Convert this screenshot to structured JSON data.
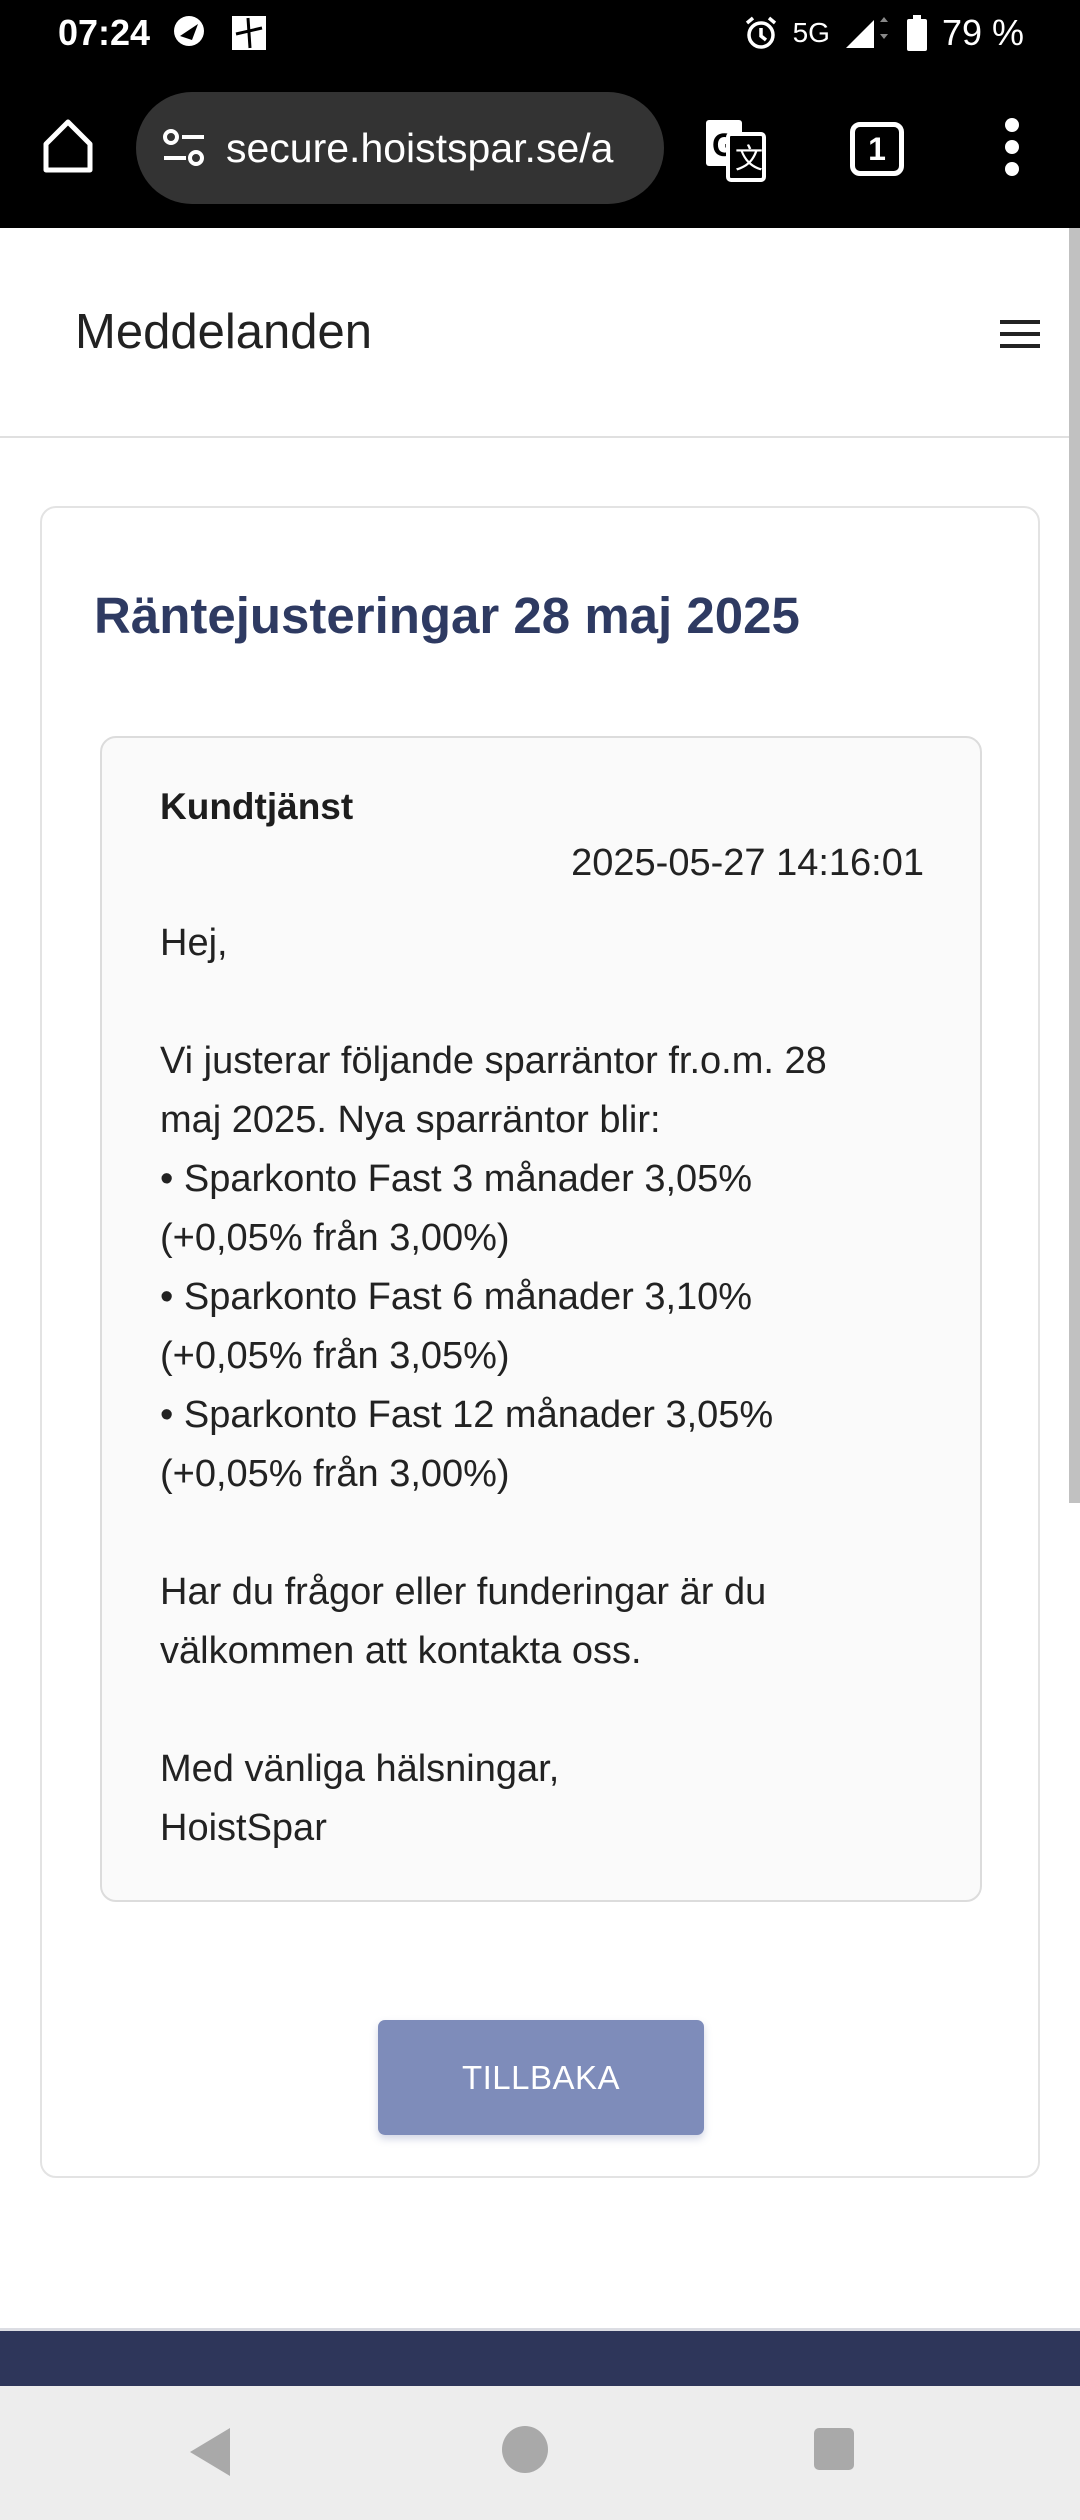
{
  "status_bar": {
    "time": "07:24",
    "network": "5G",
    "battery": "79 %"
  },
  "browser": {
    "url": "secure.hoistspar.se/a",
    "tab_count": "1"
  },
  "header": {
    "title": "Meddelanden"
  },
  "card": {
    "title": "Räntejusteringar 28 maj 2025",
    "message": {
      "from": "Kundtjänst",
      "date": "2025-05-27 14:16:01",
      "lines": [
        "Hej,",
        "",
        "Vi justerar följande sparräntor fr.o.m. 28",
        "maj 2025. Nya sparräntor blir:",
        "• Sparkonto Fast 3 månader 3,05%",
        "(+0,05% från 3,00%)",
        "• Sparkonto Fast 6 månader 3,10%",
        "(+0,05% från 3,05%)",
        "• Sparkonto Fast 12 månader 3,05%",
        "(+0,05% från 3,00%)",
        "",
        "Har du frågor eller funderingar är du",
        "välkommen att kontakta oss.",
        "",
        "Med vänliga hälsningar,",
        "HoistSpar"
      ]
    },
    "back_button": "TILLBAKA"
  },
  "colors": {
    "title": "#2e3a62",
    "button": "#7e8cba",
    "footer": "#2e365a"
  }
}
